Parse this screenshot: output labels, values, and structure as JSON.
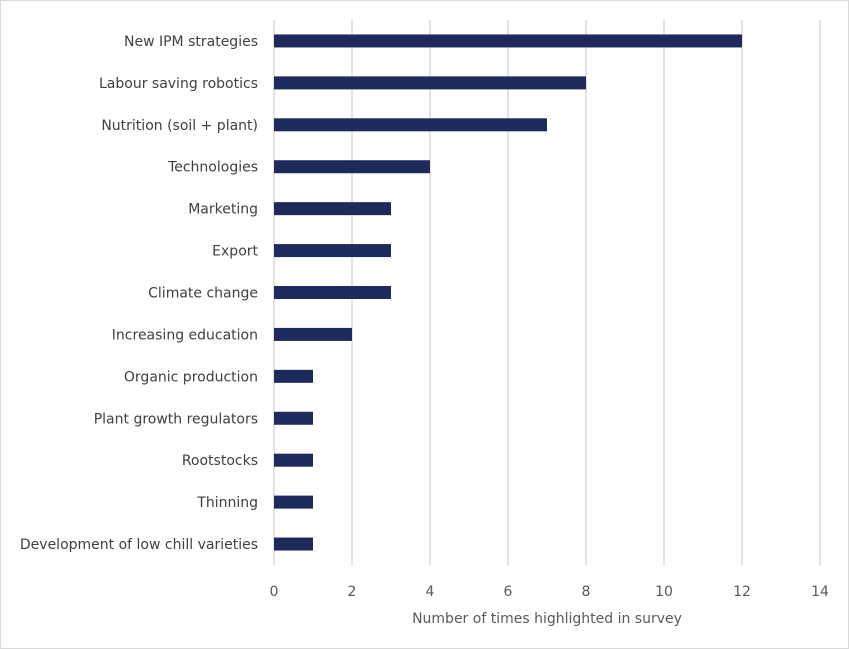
{
  "chart_data": {
    "type": "bar",
    "orientation": "horizontal",
    "title": "",
    "xlabel": "Number of times highlighted in survey",
    "ylabel": "",
    "xlim": [
      0,
      14
    ],
    "xticks": [
      0,
      2,
      4,
      6,
      8,
      10,
      12,
      14
    ],
    "grid": true,
    "legend": "none",
    "bar_color": "#1f2a5c",
    "categories": [
      "New IPM strategies",
      "Labour saving robotics",
      "Nutrition (soil + plant)",
      "Technologies",
      "Marketing",
      "Export",
      "Climate change",
      "Increasing education",
      "Organic production",
      "Plant growth regulators",
      "Rootstocks",
      "Thinning",
      "Development of low chill varieties"
    ],
    "values": [
      12,
      8,
      7,
      4,
      3,
      3,
      3,
      2,
      1,
      1,
      1,
      1,
      1
    ]
  }
}
